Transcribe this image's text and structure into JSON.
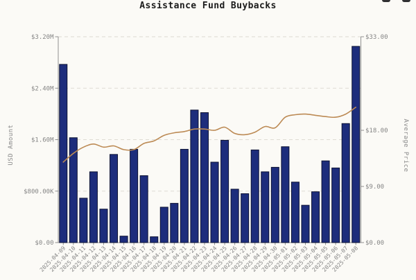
{
  "header": {
    "title": "Assistance Fund Buybacks",
    "top_right_icons": [
      {
        "name": "cropped-icon-1"
      },
      {
        "name": "cropped-icon-2"
      }
    ]
  },
  "chart_data": {
    "type": "bar",
    "title": "Assistance Fund Buybacks",
    "legend": "none",
    "grid": {
      "horizontal": true,
      "style": "dashed"
    },
    "categories": [
      "2025-04-09",
      "2025-04-10",
      "2025-04-11",
      "2025-04-12",
      "2025-04-13",
      "2025-04-14",
      "2025-04-15",
      "2025-04-16",
      "2025-04-17",
      "2025-04-18",
      "2025-04-19",
      "2025-04-20",
      "2025-04-21",
      "2025-04-22",
      "2025-04-23",
      "2025-04-24",
      "2025-04-25",
      "2025-04-26",
      "2025-04-27",
      "2025-04-28",
      "2025-04-29",
      "2025-04-30",
      "2025-05-01",
      "2025-05-02",
      "2025-05-03",
      "2025-05-04",
      "2025-05-05",
      "2025-05-06",
      "2025-05-07",
      "2025-05-08"
    ],
    "series": [
      {
        "name": "USD Amount",
        "type": "bar",
        "axis": "left",
        "color": "#1d2d7c",
        "border_color": "#0c1233",
        "values": [
          2770000,
          1630000,
          690000,
          1100000,
          520000,
          1370000,
          100000,
          1450000,
          1040000,
          90000,
          550000,
          610000,
          1450000,
          2060000,
          2020000,
          1250000,
          1590000,
          830000,
          760000,
          1440000,
          1100000,
          1170000,
          1490000,
          940000,
          580000,
          790000,
          1270000,
          1160000,
          1850000,
          3050000
        ]
      },
      {
        "name": "Average Price",
        "type": "line",
        "axis": "right",
        "color": "#bc8a54",
        "values": [
          12.9,
          14.3,
          15.3,
          15.8,
          15.3,
          15.5,
          14.9,
          14.9,
          15.9,
          16.3,
          17.2,
          17.6,
          17.8,
          18.2,
          18.2,
          18.0,
          18.5,
          17.5,
          17.3,
          17.7,
          18.6,
          18.4,
          20.1,
          20.5,
          20.6,
          20.4,
          20.2,
          20.1,
          20.6,
          21.7
        ]
      }
    ],
    "left_axis": {
      "label": "USD Amount",
      "min": 0,
      "max": 3200000,
      "ticks": [
        {
          "value": 0,
          "label": "$0.00"
        },
        {
          "value": 800000,
          "label": "$800.00K"
        },
        {
          "value": 1600000,
          "label": "$1.60M"
        },
        {
          "value": 2400000,
          "label": "$2.40M"
        },
        {
          "value": 3200000,
          "label": "$3.20M"
        }
      ]
    },
    "right_axis": {
      "label": "Average Price",
      "min": 0,
      "max": 33,
      "ticks": [
        {
          "value": 0,
          "label": "$0.00"
        },
        {
          "value": 9,
          "label": "$9.00"
        },
        {
          "value": 18,
          "label": "$18.00"
        },
        {
          "value": 33,
          "label": "$33.00"
        }
      ]
    }
  },
  "colors": {
    "background": "#fbfaf6",
    "bar_fill": "#1d2d7c",
    "bar_border": "#0c1233",
    "line": "#bc8a54",
    "grid": "#dedbd3",
    "axis": "#909090",
    "tick_text": "#858585",
    "title_text": "#1b1b1b"
  }
}
